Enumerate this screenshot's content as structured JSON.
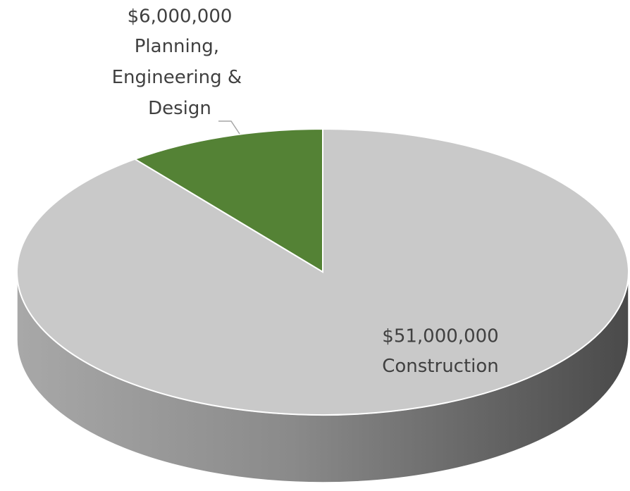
{
  "chart_data": {
    "type": "pie",
    "categories": [
      "Construction",
      "Planning, Engineering & Design"
    ],
    "values": [
      51000000,
      6000000
    ],
    "value_labels": [
      "$51,000,000",
      "$6,000,000"
    ],
    "colors": [
      "#c9c9c9",
      "#548235"
    ]
  }
}
